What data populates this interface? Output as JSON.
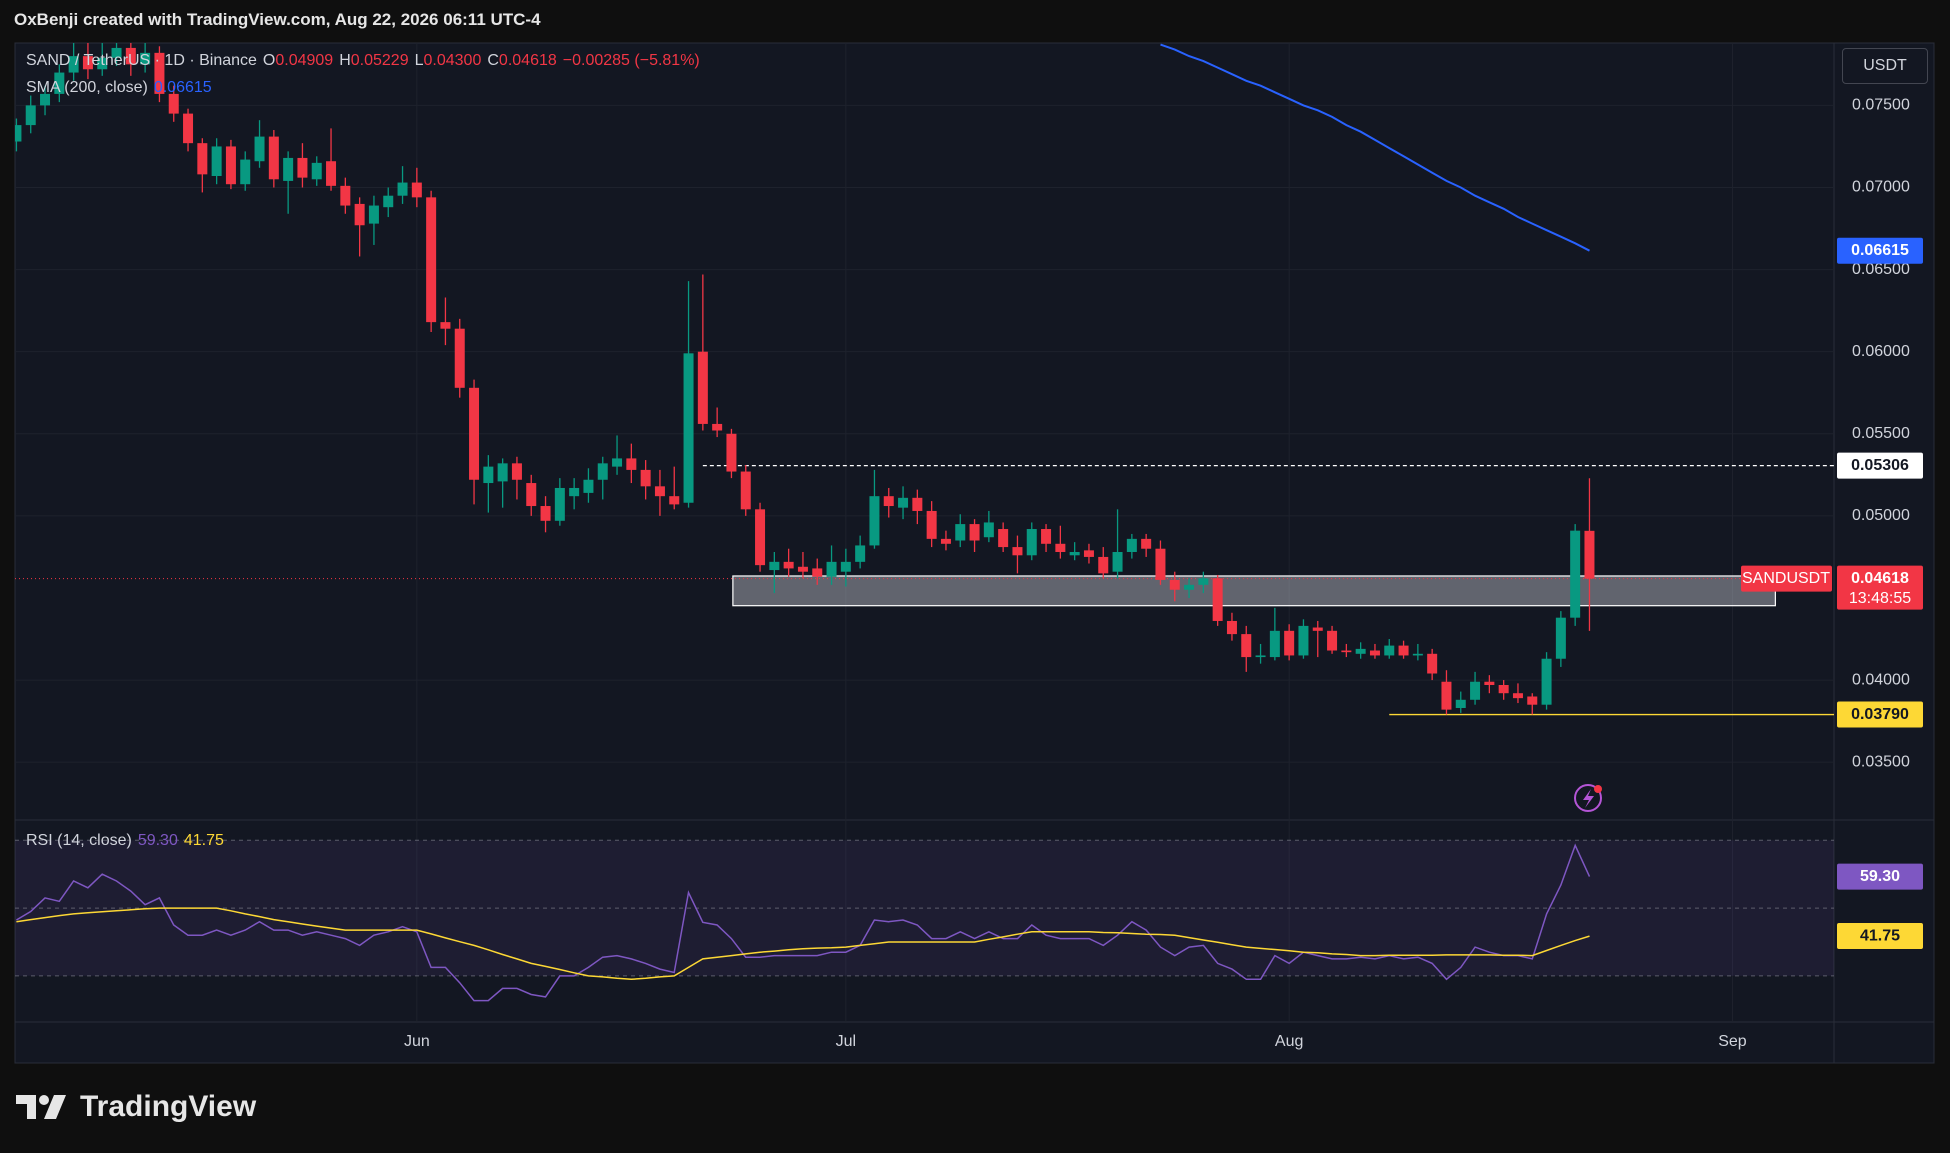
{
  "chart_data": {
    "type": "candlestick",
    "header": "OxBenji created with TradingView.com, Aug 22, 2026 06:11 UTC-4",
    "legend": {
      "symbol": "SAND / TetherUS · 1D · Binance",
      "ohlc": [
        {
          "key": "O",
          "value": "0.04909"
        },
        {
          "key": "H",
          "value": "0.05229"
        },
        {
          "key": "L",
          "value": "0.04300"
        },
        {
          "key": "C",
          "value": "0.04618"
        }
      ],
      "change": "−0.00285 (−5.81%)"
    },
    "currency": "USDT",
    "logo": "TradingView",
    "up_color": "#089981",
    "down_color": "#f23645",
    "grid": true,
    "xlim": [
      -0.1,
      127.1
    ],
    "xticks": [
      {
        "value": 28,
        "label": "Jun"
      },
      {
        "value": 58,
        "label": "Jul"
      },
      {
        "value": 89,
        "label": "Aug"
      },
      {
        "value": 120,
        "label": "Sep"
      }
    ],
    "ylim": [
      0.0316,
      0.0788
    ],
    "yticks": [
      {
        "value": 0.035,
        "label": "0.03500"
      },
      {
        "value": 0.04,
        "label": "0.04000"
      },
      {
        "value": 0.05,
        "label": "0.05000"
      },
      {
        "value": 0.055,
        "label": "0.05500"
      },
      {
        "value": 0.06,
        "label": "0.06000"
      },
      {
        "value": 0.065,
        "label": "0.06500"
      },
      {
        "value": 0.07,
        "label": "0.07000"
      },
      {
        "value": 0.075,
        "label": "0.07500"
      }
    ],
    "candles": {
      "open": [
        0.0728,
        0.0738,
        0.075,
        0.0757,
        0.077,
        0.078,
        0.0772,
        0.0779,
        0.0785,
        0.0775,
        0.0782,
        0.0757,
        0.0745,
        0.0727,
        0.0707,
        0.0725,
        0.0702,
        0.0716,
        0.0731,
        0.0704,
        0.0718,
        0.0705,
        0.0716,
        0.0701,
        0.069,
        0.0678,
        0.0688,
        0.0695,
        0.0703,
        0.0694,
        0.0618,
        0.0614,
        0.0578,
        0.052,
        0.0521,
        0.0532,
        0.052,
        0.0506,
        0.0497,
        0.0512,
        0.0514,
        0.0522,
        0.053,
        0.0535,
        0.0528,
        0.0518,
        0.0512,
        0.0508,
        0.06,
        0.0556,
        0.055,
        0.0527,
        0.0504,
        0.0467,
        0.0472,
        0.0469,
        0.0468,
        0.0463,
        0.0466,
        0.0472,
        0.0482,
        0.0512,
        0.0505,
        0.0511,
        0.0503,
        0.0486,
        0.0485,
        0.0495,
        0.0487,
        0.0492,
        0.0481,
        0.0476,
        0.0492,
        0.0483,
        0.0476,
        0.0479,
        0.0475,
        0.0466,
        0.0478,
        0.0486,
        0.048,
        0.0461,
        0.0455,
        0.0458,
        0.0462,
        0.0436,
        0.0428,
        0.0414,
        0.0414,
        0.043,
        0.0415,
        0.0432,
        0.043,
        0.0418,
        0.0416,
        0.0418,
        0.0415,
        0.0421,
        0.0415,
        0.0416,
        0.0399,
        0.0383,
        0.0388,
        0.0399,
        0.0397,
        0.0392,
        0.039,
        0.0385,
        0.0413,
        0.0438,
        0.04909
      ],
      "high": [
        0.0742,
        0.0756,
        0.0762,
        0.0775,
        0.079,
        0.0792,
        0.0788,
        0.0795,
        0.079,
        0.0788,
        0.0786,
        0.0762,
        0.0748,
        0.073,
        0.073,
        0.0729,
        0.0722,
        0.0741,
        0.0735,
        0.0722,
        0.0727,
        0.0719,
        0.0736,
        0.0706,
        0.0694,
        0.0695,
        0.07,
        0.0713,
        0.0712,
        0.0698,
        0.0633,
        0.062,
        0.0583,
        0.0537,
        0.0535,
        0.0536,
        0.0525,
        0.0512,
        0.0523,
        0.0523,
        0.0529,
        0.0536,
        0.0549,
        0.0544,
        0.0534,
        0.0528,
        0.053,
        0.0643,
        0.0647,
        0.0566,
        0.0553,
        0.0531,
        0.0508,
        0.0478,
        0.048,
        0.0478,
        0.0474,
        0.0482,
        0.048,
        0.0488,
        0.0528,
        0.0517,
        0.0518,
        0.0516,
        0.0509,
        0.0491,
        0.0501,
        0.0498,
        0.0503,
        0.0496,
        0.0488,
        0.0496,
        0.0495,
        0.0494,
        0.0484,
        0.0483,
        0.0481,
        0.0504,
        0.0489,
        0.0489,
        0.0485,
        0.0466,
        0.0462,
        0.0466,
        0.0464,
        0.0441,
        0.0433,
        0.0422,
        0.0444,
        0.0434,
        0.0437,
        0.0436,
        0.0433,
        0.0422,
        0.0423,
        0.0422,
        0.0425,
        0.0424,
        0.0422,
        0.0419,
        0.0406,
        0.0393,
        0.0405,
        0.0403,
        0.04,
        0.0398,
        0.0392,
        0.0417,
        0.0442,
        0.0495,
        0.05229
      ],
      "low": [
        0.0722,
        0.0733,
        0.0744,
        0.0752,
        0.0765,
        0.0766,
        0.0768,
        0.0774,
        0.0768,
        0.077,
        0.0752,
        0.074,
        0.0722,
        0.0697,
        0.0702,
        0.0699,
        0.0698,
        0.0712,
        0.07,
        0.0684,
        0.07,
        0.0701,
        0.0698,
        0.0684,
        0.0658,
        0.0665,
        0.0682,
        0.069,
        0.0688,
        0.0612,
        0.0604,
        0.0572,
        0.0507,
        0.0502,
        0.0505,
        0.051,
        0.05,
        0.049,
        0.0494,
        0.0504,
        0.0508,
        0.051,
        0.0525,
        0.052,
        0.051,
        0.05,
        0.0504,
        0.0505,
        0.0552,
        0.0548,
        0.0523,
        0.05,
        0.0466,
        0.0453,
        0.0463,
        0.0462,
        0.0458,
        0.0458,
        0.0457,
        0.0468,
        0.048,
        0.0499,
        0.0498,
        0.0495,
        0.0481,
        0.0479,
        0.0481,
        0.0478,
        0.0484,
        0.0478,
        0.0465,
        0.0473,
        0.0478,
        0.0474,
        0.0473,
        0.0471,
        0.0462,
        0.0462,
        0.0474,
        0.0475,
        0.0458,
        0.0448,
        0.045,
        0.0453,
        0.0433,
        0.0424,
        0.0405,
        0.041,
        0.0412,
        0.0412,
        0.0413,
        0.0414,
        0.0416,
        0.0414,
        0.0413,
        0.0413,
        0.0413,
        0.0413,
        0.0412,
        0.04,
        0.0379,
        0.038,
        0.0385,
        0.0392,
        0.0388,
        0.0386,
        0.0379,
        0.0382,
        0.0408,
        0.0433,
        0.043
      ],
      "close": [
        0.0738,
        0.075,
        0.0757,
        0.077,
        0.078,
        0.0772,
        0.0779,
        0.0785,
        0.0775,
        0.0782,
        0.0757,
        0.0745,
        0.0727,
        0.0708,
        0.0725,
        0.0702,
        0.0717,
        0.0731,
        0.0705,
        0.0718,
        0.0706,
        0.0715,
        0.0701,
        0.0689,
        0.0677,
        0.0689,
        0.0695,
        0.0703,
        0.0694,
        0.0618,
        0.0614,
        0.0578,
        0.0522,
        0.053,
        0.0532,
        0.0522,
        0.0506,
        0.0497,
        0.0517,
        0.0517,
        0.0522,
        0.0532,
        0.0535,
        0.0528,
        0.0518,
        0.0512,
        0.0507,
        0.0599,
        0.0556,
        0.0552,
        0.0527,
        0.0504,
        0.047,
        0.0472,
        0.0468,
        0.0466,
        0.0463,
        0.0472,
        0.0472,
        0.0482,
        0.0512,
        0.0506,
        0.0511,
        0.0503,
        0.0486,
        0.0483,
        0.0495,
        0.0485,
        0.0496,
        0.0481,
        0.0476,
        0.0492,
        0.0483,
        0.0478,
        0.0478,
        0.0475,
        0.0465,
        0.0478,
        0.0486,
        0.048,
        0.0461,
        0.0455,
        0.0458,
        0.0462,
        0.0436,
        0.0428,
        0.0414,
        0.0415,
        0.043,
        0.0415,
        0.0433,
        0.043,
        0.0418,
        0.0417,
        0.0419,
        0.0415,
        0.0421,
        0.0415,
        0.0416,
        0.0404,
        0.0382,
        0.0388,
        0.0399,
        0.0397,
        0.0392,
        0.0389,
        0.0385,
        0.0413,
        0.0438,
        0.0491,
        0.04618
      ]
    },
    "series": [
      {
        "name": "SMA (200, close)",
        "color": "#2962ff",
        "values": [
          null,
          null,
          null,
          null,
          null,
          null,
          null,
          null,
          null,
          null,
          null,
          null,
          null,
          null,
          null,
          null,
          null,
          null,
          null,
          null,
          null,
          null,
          null,
          null,
          null,
          null,
          null,
          null,
          null,
          null,
          null,
          null,
          null,
          null,
          null,
          null,
          null,
          null,
          null,
          null,
          null,
          null,
          null,
          null,
          null,
          null,
          null,
          null,
          null,
          null,
          null,
          null,
          null,
          null,
          null,
          null,
          null,
          null,
          null,
          null,
          null,
          null,
          null,
          null,
          null,
          null,
          null,
          null,
          null,
          null,
          null,
          null,
          null,
          null,
          null,
          null,
          null,
          null,
          null,
          null,
          0.0787,
          0.0784,
          0.078,
          0.0777,
          0.0773,
          0.0769,
          0.0765,
          0.0762,
          0.0758,
          0.0754,
          0.075,
          0.0747,
          0.0743,
          0.0738,
          0.0734,
          0.0729,
          0.0724,
          0.0719,
          0.0714,
          0.0709,
          0.0704,
          0.07,
          0.0695,
          0.0691,
          0.0687,
          0.0682,
          0.0678,
          0.0674,
          0.067,
          0.0666,
          0.06615
        ]
      }
    ],
    "zone": {
      "range": [
        0.04453,
        0.04634
      ],
      "start": 50.1,
      "end": 123
    },
    "levels": [
      {
        "value": 0.05306,
        "start": 48,
        "color": "#ffffff",
        "text_color": "#131722"
      },
      {
        "value": 0.0379,
        "label": "0.03790",
        "start": 96,
        "color": "#fdd835",
        "text_color": "#131722"
      }
    ],
    "last_price": {
      "symbol": "SANDUSDT",
      "countdown": "13:48:55"
    },
    "rsi": {
      "title": "RSI (14, close)",
      "ylim": [
        16.4,
        75.1
      ],
      "bands": [
        30,
        50,
        70
      ],
      "color": "#7e57c2",
      "ma_color": "#fdd835",
      "values": [
        46.5,
        49,
        53,
        52,
        58,
        56,
        60,
        58,
        55,
        51,
        53,
        45,
        42,
        42,
        43.5,
        42,
        43.5,
        46,
        43.5,
        43.5,
        42,
        43,
        42,
        41,
        39,
        42,
        43,
        44.5,
        43,
        32.5,
        32.5,
        28,
        22.7,
        22.7,
        26.3,
        26.3,
        24.5,
        23.8,
        30,
        30,
        32.5,
        35.5,
        36,
        35,
        33.7,
        32,
        31,
        54.6,
        45.8,
        45,
        41,
        35.5,
        35.5,
        36,
        36,
        36,
        36,
        37,
        37,
        39,
        46.5,
        46,
        46.5,
        45,
        41,
        41,
        43,
        41,
        43,
        41,
        41,
        45,
        42,
        41,
        41,
        41,
        39,
        42,
        46,
        43.5,
        38.5,
        36,
        38.5,
        39,
        33.7,
        32,
        29,
        29,
        36,
        33.7,
        37,
        36,
        35,
        35,
        35.5,
        35,
        36,
        35,
        35.5,
        33.7,
        29,
        32.5,
        38.5,
        37,
        36,
        36,
        35,
        48.3,
        56.8,
        68.5,
        59.3
      ],
      "ma_values": [
        46,
        46.6,
        47.2,
        47.8,
        48.3,
        48.6,
        48.9,
        49.2,
        49.5,
        49.8,
        50,
        50,
        50,
        50,
        50,
        49.2,
        48.3,
        47.5,
        46.6,
        46,
        45.3,
        44.7,
        44.1,
        43.5,
        43.5,
        43.5,
        43.5,
        43.5,
        43.5,
        42.4,
        41.2,
        40.1,
        39,
        37.7,
        36.3,
        35,
        33.7,
        32.8,
        31.9,
        30.9,
        30,
        29.7,
        29.3,
        29,
        29.3,
        29.7,
        30,
        32.5,
        35,
        35.5,
        36,
        36.5,
        37,
        37.3,
        37.7,
        38,
        38.2,
        38.3,
        38.5,
        39,
        39.5,
        40,
        40,
        40,
        40,
        40,
        40,
        40,
        40.8,
        41.5,
        42.3,
        43,
        43,
        43,
        43,
        43,
        42.8,
        42.7,
        42.5,
        42.3,
        42.2,
        42,
        41.3,
        40.6,
        39.9,
        39.2,
        38.5,
        38.1,
        37.8,
        37.4,
        37,
        36.8,
        36.5,
        36.3,
        36,
        36,
        36.1,
        36.1,
        36.1,
        36.1,
        36.2,
        36.2,
        36.2,
        36.2,
        36.1,
        36.1,
        36,
        37.5,
        39,
        40.4,
        41.75
      ],
      "last_labels": [
        "59.30",
        "41.75"
      ]
    }
  }
}
